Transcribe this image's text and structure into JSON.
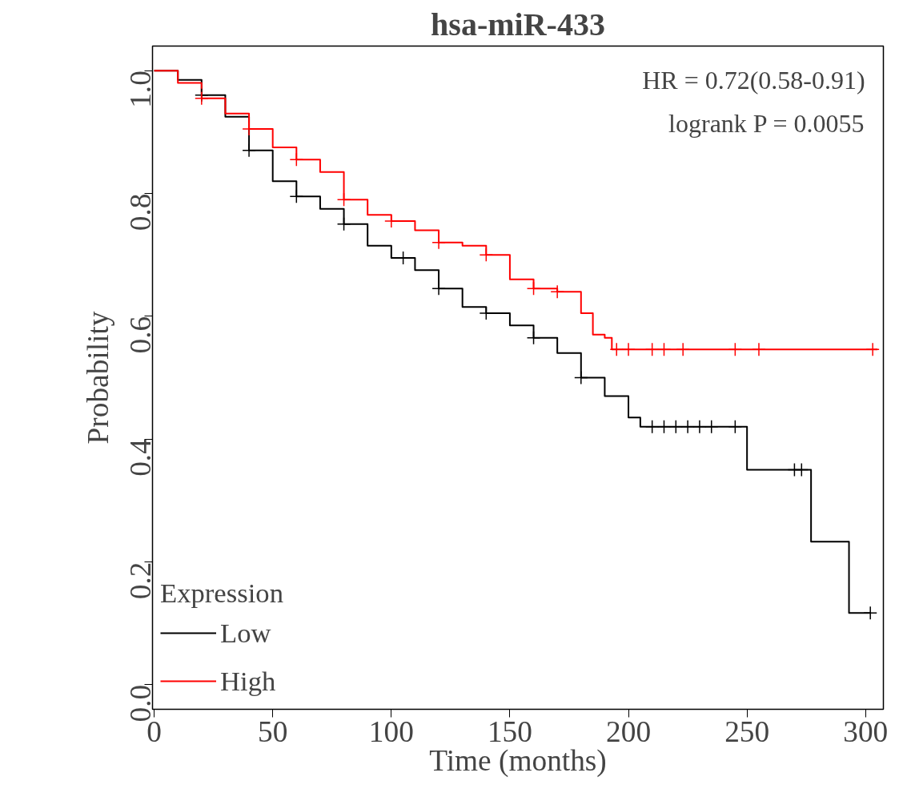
{
  "chart_data": {
    "type": "step",
    "title": "hsa-miR-433",
    "xlabel": "Time (months)",
    "ylabel": "Probability",
    "legend_title": "Expression",
    "legend": "bottom left",
    "grid": false,
    "xlim": [
      -0.7,
      307.5
    ],
    "ylim": [
      -0.04,
      1.04
    ],
    "xticks": [
      0,
      50,
      100,
      150,
      200,
      250,
      300
    ],
    "yticks": [
      {
        "value": 0,
        "label": "0.0"
      },
      0.2,
      0.4,
      0.6,
      0.8,
      {
        "value": 1,
        "label": "1.0"
      }
    ],
    "annotations": [
      "HR = 0.72(0.58-0.91)",
      "logrank P = 0.0055"
    ],
    "series": [
      {
        "name": "Low",
        "color": "#000000",
        "x": [
          0,
          10,
          20,
          30,
          40,
          50,
          60,
          70,
          80,
          90,
          100,
          110,
          120,
          130,
          140,
          150,
          160,
          170,
          180,
          190,
          200,
          205,
          250,
          277,
          293,
          302
        ],
        "values": [
          1.0,
          0.985,
          0.96,
          0.925,
          0.87,
          0.82,
          0.795,
          0.775,
          0.75,
          0.715,
          0.695,
          0.675,
          0.645,
          0.615,
          0.605,
          0.585,
          0.565,
          0.54,
          0.5,
          0.47,
          0.435,
          0.42,
          0.35,
          0.233,
          0.117,
          0.117
        ]
      },
      {
        "name": "High",
        "color": "#ff0000",
        "x": [
          0,
          10,
          20,
          30,
          40,
          50,
          60,
          70,
          80,
          90,
          100,
          110,
          120,
          130,
          140,
          150,
          160,
          170,
          178,
          180,
          185,
          190,
          193,
          305
        ],
        "values": [
          1.0,
          0.98,
          0.955,
          0.93,
          0.905,
          0.875,
          0.855,
          0.835,
          0.79,
          0.765,
          0.755,
          0.74,
          0.72,
          0.715,
          0.7,
          0.66,
          0.645,
          0.64,
          0.64,
          0.605,
          0.57,
          0.565,
          0.546,
          0.546
        ]
      },
      {
        "type": "scatter",
        "marker": "cross",
        "color": "#000000",
        "x": [
          20,
          40,
          60,
          80,
          105,
          120,
          140,
          160,
          180,
          210,
          215,
          220,
          225,
          230,
          235,
          245,
          270,
          273,
          302
        ],
        "values": [
          0.96,
          0.87,
          0.795,
          0.75,
          0.695,
          0.645,
          0.605,
          0.565,
          0.5,
          0.42,
          0.42,
          0.42,
          0.42,
          0.42,
          0.42,
          0.42,
          0.35,
          0.35,
          0.117
        ]
      },
      {
        "type": "scatter",
        "marker": "cross",
        "color": "#ff0000",
        "x": [
          20,
          40,
          60,
          80,
          100,
          120,
          140,
          160,
          170,
          195,
          200,
          210,
          215,
          223,
          245,
          255,
          303
        ],
        "values": [
          0.955,
          0.905,
          0.855,
          0.79,
          0.755,
          0.72,
          0.7,
          0.645,
          0.64,
          0.546,
          0.546,
          0.546,
          0.546,
          0.546,
          0.546,
          0.546,
          0.546
        ]
      }
    ]
  }
}
